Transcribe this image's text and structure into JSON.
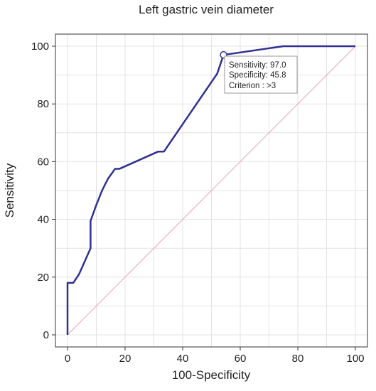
{
  "chart_data": {
    "type": "line",
    "title": "Left gastric vein diameter",
    "xlabel": "100-Specificity",
    "ylabel": "Sensitivity",
    "xlim": [
      0,
      100
    ],
    "ylim": [
      0,
      100
    ],
    "xticks": [
      0,
      20,
      40,
      60,
      80,
      100
    ],
    "yticks": [
      0,
      20,
      40,
      60,
      80,
      100
    ],
    "grid": true,
    "series": [
      {
        "color": "#2e3192",
        "x": [
          0,
          0,
          2,
          4,
          6,
          8,
          8,
          10,
          12,
          14,
          16.5,
          18,
          31.5,
          33.5,
          52,
          54.2,
          75,
          100
        ],
        "y": [
          0,
          18,
          18,
          21,
          25.5,
          30,
          39.5,
          45,
          50,
          54,
          57.5,
          57.5,
          63.5,
          63.5,
          90.5,
          97,
          100,
          100
        ]
      }
    ],
    "reference_line": {
      "color": "#e8a0b8",
      "x": [
        0,
        100
      ],
      "y": [
        0,
        100
      ]
    },
    "highlight_point": {
      "x": 54.2,
      "y": 97
    },
    "annotation": {
      "lines": [
        "Sensitivity: 97.0",
        "Specificity: 45.8",
        "Criterion : >3"
      ]
    }
  }
}
